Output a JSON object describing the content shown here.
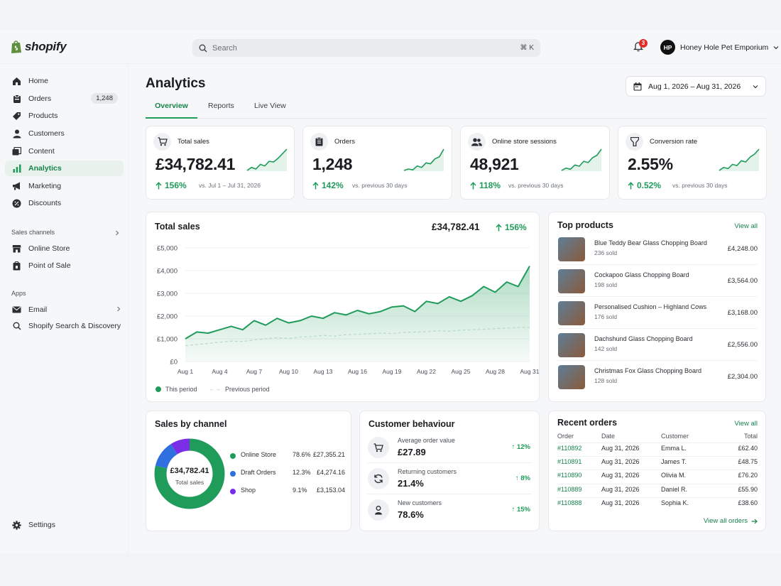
{
  "brand": {
    "name": "shopify",
    "color": "#1f9b5a"
  },
  "search": {
    "placeholder": "Search",
    "shortcut": "⌘ K"
  },
  "notifications": {
    "count": "3"
  },
  "account": {
    "initials": "HP",
    "store_name": "Honey Hole Pet Emporium"
  },
  "sidebar": {
    "items": [
      {
        "label": "Home",
        "icon": "home-icon"
      },
      {
        "label": "Orders",
        "icon": "orders-icon",
        "count": "1,248"
      },
      {
        "label": "Products",
        "icon": "tag-icon"
      },
      {
        "label": "Customers",
        "icon": "person-icon"
      },
      {
        "label": "Content",
        "icon": "content-icon"
      },
      {
        "label": "Analytics",
        "icon": "bar-chart-icon",
        "active": true
      },
      {
        "label": "Marketing",
        "icon": "megaphone-icon"
      },
      {
        "label": "Discounts",
        "icon": "discount-icon"
      }
    ],
    "sales_channels_label": "Sales channels",
    "channels": [
      {
        "label": "Online Store",
        "icon": "store-icon"
      },
      {
        "label": "Point of Sale",
        "icon": "pos-icon"
      }
    ],
    "apps_label": "Apps",
    "apps": [
      {
        "label": "Email",
        "icon": "mail-icon"
      },
      {
        "label": "Shopify Search & Discovery",
        "icon": "search-icon"
      }
    ],
    "settings_label": "Settings"
  },
  "page": {
    "title": "Analytics",
    "date_range": "Aug 1, 2026 – Aug 31, 2026",
    "tabs": [
      {
        "label": "Overview",
        "active": true
      },
      {
        "label": "Reports"
      },
      {
        "label": "Live View"
      }
    ]
  },
  "kpis": [
    {
      "label": "Total sales",
      "value": "£34,782.41",
      "delta": "156%",
      "comparison": "vs. Jul 1 – Jul 31, 2026",
      "icon": "cart-icon",
      "spark": [
        2,
        3,
        2.5,
        4,
        3.5,
        5,
        4.8,
        6,
        7.5,
        9
      ]
    },
    {
      "label": "Orders",
      "value": "1,248",
      "delta": "142%",
      "comparison": "vs. previous 30 days",
      "icon": "clipboard-icon",
      "spark": [
        2,
        2.5,
        2.2,
        3.5,
        3,
        4.5,
        4.2,
        5.8,
        6.5,
        9
      ]
    },
    {
      "label": "Online store sessions",
      "value": "48,921",
      "delta": "118%",
      "comparison": "vs. previous 30 days",
      "icon": "people-icon",
      "spark": [
        2,
        2.8,
        2.4,
        3.8,
        3.4,
        5,
        4.6,
        6.2,
        7,
        9
      ]
    },
    {
      "label": "Conversion rate",
      "value": "2.55%",
      "delta": "0.52%",
      "comparison": "vs. previous 30 days",
      "icon": "funnel-icon",
      "spark": [
        2,
        3,
        2.6,
        4,
        3.6,
        5.2,
        4.8,
        6.4,
        7.4,
        9
      ]
    }
  ],
  "total_sales_chart": {
    "title": "Total sales",
    "total": "£34,782.41",
    "delta": "156%",
    "legend": {
      "current": "This period",
      "previous": "Previous period"
    },
    "colors": {
      "current": "#1f9b5a",
      "previous": "#b8d9c6"
    }
  },
  "chart_data": {
    "type": "area",
    "x": [
      "Aug 1",
      "Aug 2",
      "Aug 3",
      "Aug 4",
      "Aug 5",
      "Aug 6",
      "Aug 7",
      "Aug 8",
      "Aug 9",
      "Aug 10",
      "Aug 11",
      "Aug 12",
      "Aug 13",
      "Aug 14",
      "Aug 15",
      "Aug 16",
      "Aug 17",
      "Aug 18",
      "Aug 19",
      "Aug 20",
      "Aug 21",
      "Aug 22",
      "Aug 23",
      "Aug 24",
      "Aug 25",
      "Aug 26",
      "Aug 27",
      "Aug 28",
      "Aug 29",
      "Aug 30",
      "Aug 31"
    ],
    "xticks": [
      "Aug 1",
      "Aug 4",
      "Aug 7",
      "Aug 10",
      "Aug 13",
      "Aug 16",
      "Aug 19",
      "Aug 22",
      "Aug 25",
      "Aug 28",
      "Aug 31"
    ],
    "series": [
      {
        "name": "This period",
        "values": [
          1000,
          1300,
          1250,
          1400,
          1550,
          1400,
          1800,
          1600,
          1900,
          1700,
          1800,
          2000,
          1900,
          2150,
          2050,
          2250,
          2100,
          2200,
          2400,
          2450,
          2200,
          2650,
          2550,
          2850,
          2650,
          2900,
          3300,
          3050,
          3500,
          3300,
          4200
        ]
      },
      {
        "name": "Previous period",
        "values": [
          700,
          750,
          800,
          850,
          900,
          880,
          950,
          1000,
          1050,
          1020,
          1080,
          1100,
          1150,
          1120,
          1180,
          1200,
          1220,
          1250,
          1230,
          1280,
          1300,
          1320,
          1350,
          1330,
          1380,
          1400,
          1420,
          1450,
          1470,
          1500,
          1500
        ]
      }
    ],
    "yticks": [
      "£0",
      "£1,000",
      "£2,000",
      "£3,000",
      "£4,000",
      "£5,000"
    ],
    "ylim": [
      0,
      5000
    ]
  },
  "top_products": {
    "title": "Top products",
    "view_all": "View all",
    "items": [
      {
        "name": "Blue Teddy Bear Glass Chopping Board",
        "sold": "236 sold",
        "value": "£4,248.00"
      },
      {
        "name": "Cockapoo Glass Chopping Board",
        "sold": "198 sold",
        "value": "£3,564.00"
      },
      {
        "name": "Personalised Cushion – Highland Cows",
        "sold": "176 sold",
        "value": "£3,168.00"
      },
      {
        "name": "Dachshund Glass Chopping Board",
        "sold": "142 sold",
        "value": "£2,556.00"
      },
      {
        "name": "Christmas Fox Glass Chopping Board",
        "sold": "128 sold",
        "value": "£2,304.00"
      }
    ]
  },
  "sales_by_channel": {
    "title": "Sales by channel",
    "center_value": "£34,782.41",
    "center_label": "Total sales",
    "channels": [
      {
        "name": "Online Store",
        "pct": "78.6%",
        "value": "£27,355.21",
        "share": 0.786,
        "color": "#1f9b5a"
      },
      {
        "name": "Draft Orders",
        "pct": "12.3%",
        "value": "£4,274.16",
        "share": 0.123,
        "color": "#2f6fe0"
      },
      {
        "name": "Shop",
        "pct": "9.1%",
        "value": "£3,153.04",
        "share": 0.091,
        "color": "#7a2ee6"
      }
    ]
  },
  "customer_behaviour": {
    "title": "Customer behaviour",
    "items": [
      {
        "label": "Average order value",
        "value": "£27.89",
        "delta": "12%",
        "icon": "cart-icon"
      },
      {
        "label": "Returning customers",
        "value": "21.4%",
        "delta": "8%",
        "icon": "refresh-icon"
      },
      {
        "label": "New customers",
        "value": "78.6%",
        "delta": "15%",
        "icon": "person-icon"
      }
    ]
  },
  "recent_orders": {
    "title": "Recent orders",
    "view_all": "View all",
    "footer_link": "View all orders",
    "headers": [
      "Order",
      "Date",
      "Customer",
      "Total"
    ],
    "rows": [
      [
        "#110892",
        "Aug 31, 2026",
        "Emma L.",
        "£62.40"
      ],
      [
        "#110891",
        "Aug 31, 2026",
        "James T.",
        "£48.75"
      ],
      [
        "#110890",
        "Aug 31, 2026",
        "Olivia M.",
        "£76.20"
      ],
      [
        "#110889",
        "Aug 31, 2026",
        "Daniel R.",
        "£55.90"
      ],
      [
        "#110888",
        "Aug 31, 2026",
        "Sophia K.",
        "£38.60"
      ]
    ]
  }
}
